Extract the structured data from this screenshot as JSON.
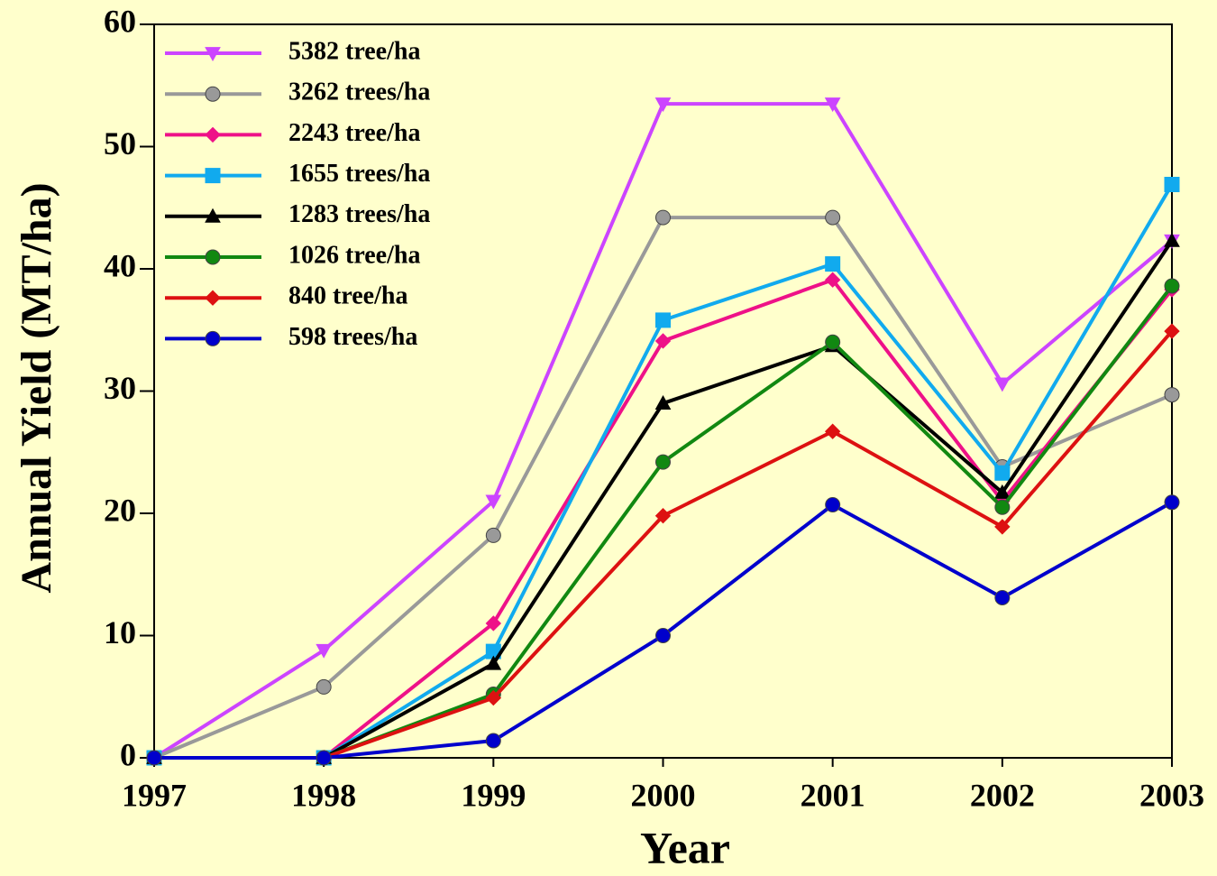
{
  "chart_data": {
    "type": "line",
    "x_label": "Year",
    "y_label": "Annual Yield (MT/ha)",
    "categories": [
      "1997",
      "1998",
      "1999",
      "2000",
      "2001",
      "2002",
      "2003"
    ],
    "ylim": [
      0,
      60
    ],
    "yticks": [
      0,
      10,
      20,
      30,
      40,
      50,
      60
    ],
    "legend": "upper left",
    "series": [
      {
        "name": "5382 tree/ha",
        "color": "#cc44ff",
        "marker": "triangle-down",
        "values": [
          0,
          8.8,
          21.0,
          53.5,
          53.5,
          30.6,
          42.3
        ]
      },
      {
        "name": "3262 trees/ha",
        "color": "#999999",
        "marker": "circle",
        "values": [
          0,
          5.8,
          18.2,
          44.2,
          44.2,
          23.8,
          29.7
        ]
      },
      {
        "name": "2243 tree/ha",
        "color": "#ee1188",
        "marker": "diamond",
        "values": [
          0,
          0,
          11.0,
          34.1,
          39.1,
          21.0,
          38.3
        ]
      },
      {
        "name": "1655 trees/ha",
        "color": "#11aaee",
        "marker": "square",
        "values": [
          0,
          0,
          8.7,
          35.8,
          40.4,
          23.3,
          46.9
        ]
      },
      {
        "name": "1283 trees/ha",
        "color": "#000000",
        "marker": "triangle-up",
        "values": [
          0,
          0,
          7.7,
          29.0,
          33.7,
          21.7,
          42.3
        ]
      },
      {
        "name": "1026 tree/ha",
        "color": "#118811",
        "marker": "circle",
        "values": [
          0,
          0,
          5.2,
          24.2,
          34.0,
          20.5,
          38.6
        ]
      },
      {
        "name": "840 tree/ha",
        "color": "#dd1111",
        "marker": "diamond",
        "values": [
          0,
          0,
          4.9,
          19.8,
          26.7,
          18.9,
          34.9
        ]
      },
      {
        "name": "598 trees/ha",
        "color": "#0000cc",
        "marker": "circle",
        "values": [
          0,
          0,
          1.4,
          10.0,
          20.7,
          13.1,
          20.9
        ]
      }
    ]
  }
}
